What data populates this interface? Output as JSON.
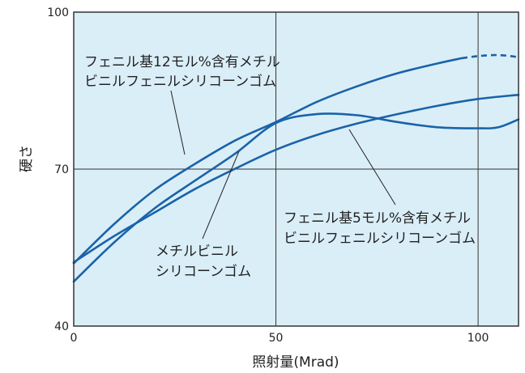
{
  "chart_data": {
    "type": "line",
    "xlabel": "照射量(Mrad)",
    "ylabel": "硬さ",
    "xlim": [
      0,
      110
    ],
    "ylim": [
      40,
      100
    ],
    "x_ticks": [
      "0",
      "50",
      "100"
    ],
    "y_ticks": [
      "40",
      "70",
      "100"
    ],
    "grid": true,
    "colors": {
      "background": "#daeef8",
      "line": "#1a63a8",
      "grid": "#333333",
      "text": "#222222"
    },
    "series": [
      {
        "name": "フェニル基12モル%含有メチルビニルフェニルシリコーンゴム",
        "label_lines": [
          "フェニル基12モル%含有メチル",
          "ビニルフェニルシリコーンゴム"
        ],
        "points": [
          [
            0,
            52
          ],
          [
            10,
            59.5
          ],
          [
            20,
            66
          ],
          [
            30,
            71
          ],
          [
            40,
            75.5
          ],
          [
            50,
            79
          ],
          [
            60,
            82.8
          ],
          [
            70,
            85.8
          ],
          [
            80,
            88.3
          ],
          [
            90,
            90.2
          ],
          [
            96,
            91.2
          ]
        ],
        "dashed_points": [
          [
            96,
            91.2
          ],
          [
            100,
            91.6
          ],
          [
            105,
            91.8
          ],
          [
            110,
            91.4
          ]
        ]
      },
      {
        "name": "フェニル基5モル%含有メチルビニルフェニルシリコーンゴム",
        "label_lines": [
          "フェニル基5モル%含有メチル",
          "ビニルフェニルシリコーンゴム"
        ],
        "points": [
          [
            0,
            48.5
          ],
          [
            10,
            56
          ],
          [
            20,
            62.5
          ],
          [
            30,
            67.8
          ],
          [
            40,
            73
          ],
          [
            50,
            78.8
          ],
          [
            60,
            80.5
          ],
          [
            70,
            80.3
          ],
          [
            80,
            79
          ],
          [
            90,
            78
          ],
          [
            100,
            77.8
          ],
          [
            105,
            78
          ],
          [
            110,
            79.5
          ]
        ]
      },
      {
        "name": "メチルビニルシリコーンゴム",
        "label_lines": [
          "メチルビニル",
          "シリコーンゴム"
        ],
        "points": [
          [
            0,
            52.2
          ],
          [
            10,
            57.2
          ],
          [
            20,
            61.7
          ],
          [
            30,
            66.2
          ],
          [
            40,
            70.1
          ],
          [
            50,
            73.7
          ],
          [
            60,
            76.5
          ],
          [
            70,
            78.7
          ],
          [
            80,
            80.5
          ],
          [
            90,
            82.1
          ],
          [
            100,
            83.4
          ],
          [
            110,
            84.2
          ]
        ]
      }
    ]
  }
}
